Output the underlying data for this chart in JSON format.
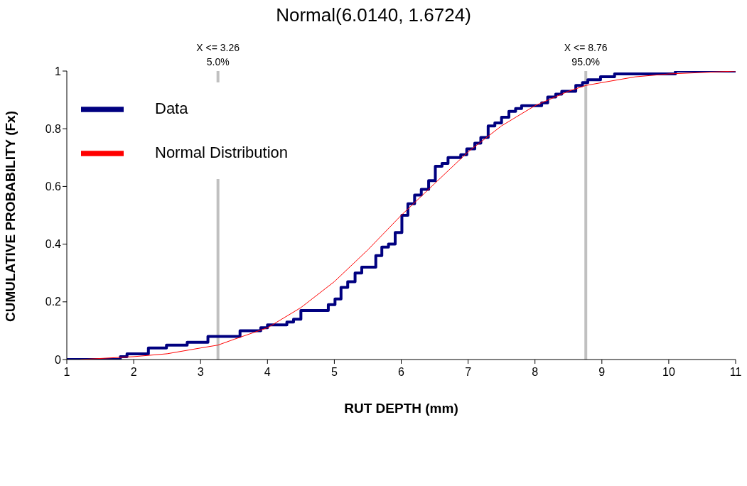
{
  "chart_data": {
    "type": "step",
    "title": "Normal(6.0140, 1.6724)",
    "xlabel": "RUT DEPTH (mm)",
    "ylabel": "CUMULATIVE PROBABILITY (Fx)",
    "xlim": [
      1,
      11
    ],
    "xticks": [
      1,
      2,
      3,
      4,
      5,
      6,
      7,
      8,
      9,
      10,
      11
    ],
    "ylim": [
      0,
      1
    ],
    "yticks": [
      0,
      0.2,
      0.4,
      0.6,
      0.8,
      1
    ],
    "grid": false,
    "legend": "top left",
    "marker": "none",
    "series": [
      {
        "name": "Data",
        "color": "#000080",
        "x": [
          1.0,
          1.8,
          1.9,
          2.22,
          2.49,
          2.8,
          3.11,
          3.59,
          3.9,
          4.0,
          4.29,
          4.39,
          4.5,
          4.91,
          5.01,
          5.1,
          5.2,
          5.31,
          5.41,
          5.62,
          5.71,
          5.81,
          5.91,
          6.01,
          6.1,
          6.2,
          6.3,
          6.41,
          6.51,
          6.61,
          6.7,
          6.89,
          6.98,
          7.1,
          7.19,
          7.3,
          7.4,
          7.5,
          7.61,
          7.71,
          7.8,
          8.1,
          8.19,
          8.31,
          8.4,
          8.61,
          8.71,
          8.79,
          8.98,
          9.19,
          10.1,
          11.0
        ],
        "values": [
          0,
          0.01,
          0.02,
          0.04,
          0.05,
          0.06,
          0.08,
          0.1,
          0.11,
          0.12,
          0.13,
          0.14,
          0.17,
          0.19,
          0.21,
          0.25,
          0.27,
          0.3,
          0.32,
          0.36,
          0.39,
          0.4,
          0.44,
          0.5,
          0.54,
          0.57,
          0.59,
          0.62,
          0.67,
          0.68,
          0.7,
          0.71,
          0.73,
          0.75,
          0.77,
          0.81,
          0.82,
          0.84,
          0.86,
          0.87,
          0.88,
          0.89,
          0.91,
          0.92,
          0.93,
          0.95,
          0.96,
          0.97,
          0.98,
          0.99,
          1.0,
          1.0
        ]
      },
      {
        "name": "Normal Distribution",
        "type": "line",
        "color": "#ff0000",
        "x": [
          1.2,
          2.0,
          2.5,
          3.0,
          3.26,
          3.5,
          4.0,
          4.5,
          5.0,
          5.5,
          6.0,
          6.5,
          7.0,
          7.5,
          8.0,
          8.5,
          8.76,
          9.0,
          9.5,
          10.0,
          11.0
        ],
        "values": [
          0.0,
          0.01,
          0.02,
          0.04,
          0.05,
          0.07,
          0.11,
          0.18,
          0.27,
          0.38,
          0.5,
          0.61,
          0.72,
          0.81,
          0.88,
          0.93,
          0.95,
          0.96,
          0.98,
          0.99,
          1.0
        ]
      }
    ],
    "ref_lines": [
      {
        "axis": "x",
        "value": 3.26,
        "label": "X <= 3.26\n5.0%",
        "color": "#c0c0c0"
      },
      {
        "axis": "x",
        "value": 8.76,
        "label": "X <= 8.76\n95.0%",
        "color": "#c0c0c0"
      }
    ]
  }
}
